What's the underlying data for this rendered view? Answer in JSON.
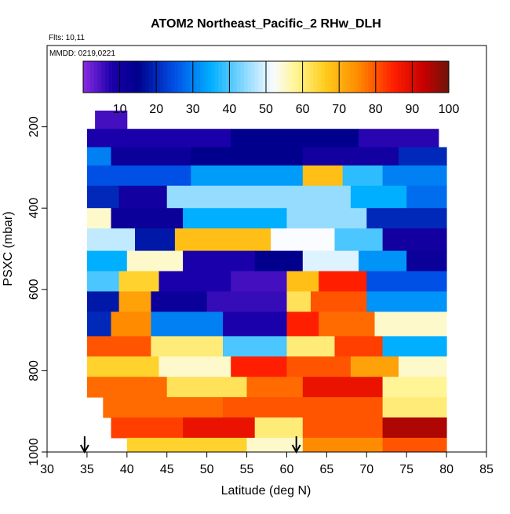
{
  "chart_data": {
    "type": "heatmap",
    "title": "ATOM2 Northeast_Pacific_2 RHw_DLH",
    "annotations": {
      "flights": "Flts: 10,11",
      "dates": "MMDD: 0219,0221"
    },
    "xlabel": "Latitude (deg N)",
    "ylabel": "PSXC (mbar)",
    "xlim": [
      30,
      85
    ],
    "ylim": [
      1000,
      0
    ],
    "xticks": [
      "30",
      "35",
      "40",
      "45",
      "50",
      "55",
      "60",
      "65",
      "70",
      "75",
      "80",
      "85"
    ],
    "yticks": [
      "200",
      "400",
      "600",
      "800",
      "1000"
    ],
    "colorbar": {
      "range": [
        0,
        100
      ],
      "ticks": [
        "10",
        "20",
        "30",
        "40",
        "50",
        "60",
        "70",
        "80",
        "90",
        "100"
      ]
    },
    "markers": [
      {
        "name": "flight-start-arrow",
        "lat": 34.7
      },
      {
        "name": "flight-end-arrow",
        "lat": 61.2
      }
    ],
    "bands": [
      {
        "pmin": 160,
        "pmax": 205,
        "segments": [
          [
            36,
            40,
            5
          ]
        ]
      },
      {
        "pmin": 205,
        "pmax": 250,
        "segments": [
          [
            35,
            53,
            8
          ],
          [
            53,
            69,
            15
          ],
          [
            69,
            79,
            7
          ]
        ]
      },
      {
        "pmin": 250,
        "pmax": 295,
        "segments": [
          [
            35,
            38,
            30
          ],
          [
            38,
            48,
            12
          ],
          [
            48,
            62,
            15
          ],
          [
            62,
            74,
            10
          ],
          [
            74,
            80,
            20
          ]
        ]
      },
      {
        "pmin": 295,
        "pmax": 345,
        "segments": [
          [
            35,
            48,
            25
          ],
          [
            48,
            62,
            33
          ],
          [
            62,
            67,
            68
          ],
          [
            67,
            72,
            38
          ],
          [
            72,
            80,
            30
          ]
        ]
      },
      {
        "pmin": 345,
        "pmax": 400,
        "segments": [
          [
            35,
            39,
            20
          ],
          [
            39,
            45,
            10
          ],
          [
            45,
            68,
            45
          ],
          [
            68,
            75,
            35
          ],
          [
            75,
            80,
            28
          ]
        ]
      },
      {
        "pmin": 400,
        "pmax": 450,
        "segments": [
          [
            35,
            38,
            55
          ],
          [
            38,
            47,
            12
          ],
          [
            47,
            60,
            35
          ],
          [
            60,
            70,
            45
          ],
          [
            70,
            80,
            20
          ]
        ]
      },
      {
        "pmin": 450,
        "pmax": 505,
        "segments": [
          [
            35,
            41,
            48
          ],
          [
            41,
            46,
            18
          ],
          [
            46,
            58,
            68
          ],
          [
            58,
            66,
            52
          ],
          [
            66,
            72,
            40
          ],
          [
            72,
            80,
            10
          ]
        ]
      },
      {
        "pmin": 505,
        "pmax": 555,
        "segments": [
          [
            35,
            40,
            35
          ],
          [
            40,
            47,
            55
          ],
          [
            47,
            56,
            8
          ],
          [
            56,
            62,
            15
          ],
          [
            62,
            69,
            50
          ],
          [
            69,
            75,
            32
          ],
          [
            75,
            80,
            12
          ]
        ]
      },
      {
        "pmin": 555,
        "pmax": 605,
        "segments": [
          [
            35,
            39,
            40
          ],
          [
            39,
            44,
            65
          ],
          [
            44,
            53,
            8
          ],
          [
            53,
            60,
            5
          ],
          [
            60,
            64,
            68
          ],
          [
            64,
            70,
            85
          ],
          [
            70,
            80,
            25
          ]
        ]
      },
      {
        "pmin": 605,
        "pmax": 655,
        "segments": [
          [
            35,
            39,
            18
          ],
          [
            39,
            43,
            72
          ],
          [
            43,
            50,
            12
          ],
          [
            50,
            60,
            6
          ],
          [
            60,
            63,
            62
          ],
          [
            63,
            70,
            80
          ],
          [
            70,
            80,
            32
          ]
        ]
      },
      {
        "pmin": 655,
        "pmax": 715,
        "segments": [
          [
            35,
            38,
            20
          ],
          [
            38,
            43,
            75
          ],
          [
            43,
            52,
            30
          ],
          [
            52,
            60,
            8
          ],
          [
            60,
            64,
            85
          ],
          [
            64,
            71,
            78
          ],
          [
            71,
            80,
            55
          ]
        ]
      },
      {
        "pmin": 715,
        "pmax": 765,
        "segments": [
          [
            35,
            43,
            80
          ],
          [
            43,
            52,
            60
          ],
          [
            52,
            60,
            40
          ],
          [
            60,
            66,
            60
          ],
          [
            66,
            72,
            82
          ],
          [
            72,
            80,
            35
          ]
        ]
      },
      {
        "pmin": 765,
        "pmax": 815,
        "segments": [
          [
            35,
            44,
            65
          ],
          [
            44,
            53,
            55
          ],
          [
            53,
            60,
            85
          ],
          [
            60,
            68,
            80
          ],
          [
            68,
            74,
            72
          ],
          [
            74,
            80,
            55
          ]
        ]
      },
      {
        "pmin": 815,
        "pmax": 865,
        "segments": [
          [
            35,
            45,
            78
          ],
          [
            45,
            55,
            62
          ],
          [
            55,
            62,
            78
          ],
          [
            62,
            72,
            88
          ],
          [
            72,
            80,
            58
          ]
        ]
      },
      {
        "pmin": 865,
        "pmax": 915,
        "segments": [
          [
            37,
            52,
            78
          ],
          [
            52,
            62,
            80
          ],
          [
            62,
            72,
            80
          ],
          [
            72,
            80,
            60
          ]
        ]
      },
      {
        "pmin": 915,
        "pmax": 965,
        "segments": [
          [
            38,
            47,
            82
          ],
          [
            47,
            56,
            88
          ],
          [
            56,
            62,
            60
          ],
          [
            62,
            72,
            80
          ],
          [
            72,
            80,
            95
          ]
        ]
      },
      {
        "pmin": 965,
        "pmax": 1000,
        "segments": [
          [
            40,
            55,
            65
          ],
          [
            55,
            62,
            55
          ],
          [
            62,
            72,
            75
          ],
          [
            72,
            80,
            80
          ]
        ]
      }
    ]
  }
}
